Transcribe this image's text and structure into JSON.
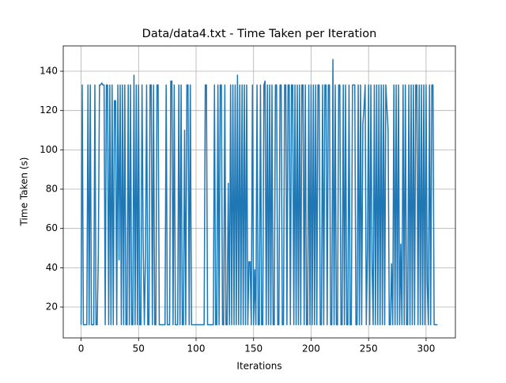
{
  "chart_data": {
    "type": "line",
    "title": "Data/data4.txt - Time Taken per Iteration",
    "x_label": "Iterations",
    "y_label": "Time Taken (s)",
    "color": "#1f77b4",
    "grid": true,
    "xlim": [
      -15.5,
      325.5
    ],
    "ylim": [
      4.3,
      152.9
    ],
    "xticks": [
      0,
      50,
      100,
      150,
      200,
      250,
      300
    ],
    "yticks": [
      20,
      40,
      60,
      80,
      100,
      120,
      140
    ],
    "x": [
      0,
      1,
      2,
      3,
      4,
      5,
      6,
      7,
      8,
      9,
      10,
      11,
      12,
      13,
      14,
      15,
      16,
      17,
      18,
      19,
      20,
      21,
      22,
      23,
      24,
      25,
      26,
      27,
      28,
      29,
      30,
      31,
      32,
      33,
      34,
      35,
      36,
      37,
      38,
      39,
      40,
      41,
      42,
      43,
      44,
      45,
      46,
      47,
      48,
      49,
      50,
      51,
      52,
      53,
      54,
      55,
      56,
      57,
      58,
      59,
      60,
      61,
      62,
      63,
      64,
      65,
      66,
      67,
      68,
      69,
      70,
      71,
      72,
      73,
      74,
      75,
      76,
      77,
      78,
      79,
      80,
      81,
      82,
      83,
      84,
      85,
      86,
      87,
      88,
      89,
      90,
      91,
      92,
      93,
      94,
      95,
      96,
      97,
      98,
      99,
      100,
      101,
      102,
      103,
      104,
      105,
      106,
      107,
      108,
      109,
      110,
      111,
      112,
      113,
      114,
      115,
      116,
      117,
      118,
      119,
      120,
      121,
      122,
      123,
      124,
      125,
      126,
      127,
      128,
      129,
      130,
      131,
      132,
      133,
      134,
      135,
      136,
      137,
      138,
      139,
      140,
      141,
      142,
      143,
      144,
      145,
      146,
      147,
      148,
      149,
      150,
      151,
      152,
      153,
      154,
      155,
      156,
      157,
      158,
      159,
      160,
      161,
      162,
      163,
      164,
      165,
      166,
      167,
      168,
      169,
      170,
      171,
      172,
      173,
      174,
      175,
      176,
      177,
      178,
      179,
      180,
      181,
      182,
      183,
      184,
      185,
      186,
      187,
      188,
      189,
      190,
      191,
      192,
      193,
      194,
      195,
      196,
      197,
      198,
      199,
      200,
      201,
      202,
      203,
      204,
      205,
      206,
      207,
      208,
      209,
      210,
      211,
      212,
      213,
      214,
      215,
      216,
      217,
      218,
      219,
      220,
      221,
      222,
      223,
      224,
      225,
      226,
      227,
      228,
      229,
      230,
      231,
      232,
      233,
      234,
      235,
      236,
      237,
      238,
      239,
      240,
      241,
      242,
      243,
      244,
      245,
      246,
      247,
      248,
      249,
      250,
      251,
      252,
      253,
      254,
      255,
      256,
      257,
      258,
      259,
      260,
      261,
      262,
      263,
      264,
      265,
      266,
      267,
      268,
      269,
      270,
      271,
      272,
      273,
      274,
      275,
      276,
      277,
      278,
      279,
      280,
      281,
      282,
      283,
      284,
      285,
      286,
      287,
      288,
      289,
      290,
      291,
      292,
      293,
      294,
      295,
      296,
      297,
      298,
      299,
      300,
      301,
      302,
      303,
      304,
      305,
      306,
      307,
      308,
      309,
      310
    ],
    "values": [
      11,
      133,
      11,
      11,
      11,
      11,
      133,
      11,
      133,
      11,
      11,
      11,
      133,
      11,
      11,
      47,
      133,
      133,
      134,
      133,
      133,
      11,
      133,
      133,
      11,
      133,
      11,
      133,
      11,
      125,
      125,
      11,
      133,
      44,
      133,
      11,
      133,
      11,
      133,
      11,
      11,
      133,
      11,
      133,
      11,
      11,
      138,
      11,
      133,
      11,
      133,
      11,
      11,
      133,
      53,
      11,
      45,
      133,
      11,
      11,
      133,
      133,
      11,
      133,
      11,
      11,
      133,
      133,
      11,
      11,
      11,
      11,
      11,
      11,
      133,
      11,
      11,
      11,
      135,
      135,
      11,
      133,
      11,
      11,
      11,
      133,
      11,
      133,
      11,
      11,
      110,
      11,
      133,
      133,
      11,
      133,
      11,
      11,
      11,
      11,
      11,
      11,
      11,
      11,
      11,
      11,
      11,
      11,
      133,
      133,
      11,
      11,
      11,
      11,
      11,
      11,
      133,
      11,
      11,
      133,
      11,
      133,
      133,
      11,
      11,
      133,
      11,
      11,
      83,
      11,
      133,
      11,
      133,
      11,
      133,
      11,
      138,
      11,
      133,
      11,
      133,
      11,
      133,
      11,
      133,
      11,
      43,
      43,
      11,
      133,
      11,
      39,
      11,
      133,
      11,
      11,
      133,
      11,
      11,
      133,
      135,
      11,
      133,
      11,
      133,
      11,
      133,
      11,
      11,
      133,
      133,
      11,
      11,
      133,
      133,
      11,
      11,
      133,
      133,
      11,
      133,
      133,
      11,
      133,
      133,
      11,
      133,
      11,
      133,
      11,
      133,
      11,
      133,
      133,
      11,
      133,
      11,
      11,
      133,
      11,
      133,
      11,
      133,
      11,
      133,
      11,
      133,
      133,
      11,
      11,
      133,
      11,
      133,
      133,
      11,
      133,
      133,
      11,
      11,
      146,
      11,
      133,
      11,
      11,
      133,
      133,
      11,
      11,
      133,
      11,
      133,
      11,
      11,
      133,
      11,
      11,
      133,
      133,
      133,
      11,
      11,
      133,
      11,
      133,
      11,
      113,
      121,
      133,
      11,
      48,
      133,
      11,
      133,
      43,
      11,
      133,
      11,
      133,
      11,
      133,
      11,
      133,
      11,
      133,
      11,
      133,
      121,
      110,
      11,
      11,
      42,
      11,
      133,
      11,
      133,
      11,
      133,
      11,
      52,
      11,
      133,
      11,
      133,
      11,
      11,
      133,
      11,
      133,
      11,
      133,
      11,
      133,
      133,
      11,
      133,
      11,
      133,
      11,
      133,
      11,
      133,
      32,
      11,
      133,
      11,
      133,
      133,
      11,
      11,
      11,
      11
    ]
  }
}
